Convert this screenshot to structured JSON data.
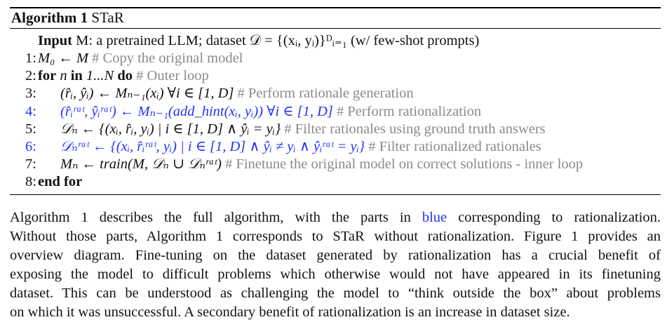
{
  "algorithm": {
    "label": "Algorithm 1",
    "name": "STaR",
    "input_keyword": "Input",
    "input_text": "M: a pretrained LLM; dataset 𝒟 = {(xᵢ, yᵢ)}ᴰᵢ₌₁ (w/ few-shot prompts)",
    "lines": [
      {
        "number": "1:",
        "code": "M₀ ← M",
        "comment": "# Copy the original model",
        "highlight": false
      },
      {
        "number": "2:",
        "keyword_for": "for",
        "code_mid": "n",
        "keyword_in": "in",
        "code_range": "1...N",
        "keyword_do": "do",
        "comment": "# Outer loop",
        "highlight": false
      },
      {
        "number": "3:",
        "code": "(r̂ᵢ, ŷᵢ) ← Mₙ₋₁(xᵢ)   ∀i ∈ [1, D]",
        "comment": "# Perform rationale generation",
        "highlight": false
      },
      {
        "number": "4:",
        "code": "(r̂ᵢʳᵃᵗ, ŷᵢʳᵃᵗ) ← Mₙ₋₁(add_hint(xᵢ, yᵢ))   ∀i ∈ [1, D]",
        "comment": "# Perform rationalization",
        "highlight": true
      },
      {
        "number": "5:",
        "code": "𝒟ₙ ← {(xᵢ, r̂ᵢ, yᵢ) | i ∈ [1, D] ∧ ŷᵢ = yᵢ}",
        "comment": "# Filter rationales using ground truth answers",
        "highlight": false
      },
      {
        "number": "6:",
        "code": "𝒟ₙʳᵃᵗ ← {(xᵢ, r̂ᵢʳᵃᵗ, yᵢ) | i ∈ [1, D] ∧ ŷᵢ ≠ yᵢ ∧ ŷᵢʳᵃᵗ = yᵢ}",
        "comment": "# Filter rationalized rationales",
        "highlight": true
      },
      {
        "number": "7:",
        "code": "Mₙ ← train(M, 𝒟ₙ ∪ 𝒟ₙʳᵃᵗ)",
        "comment": "# Finetune the original model on correct solutions - inner loop",
        "highlight": false
      },
      {
        "number": "8:",
        "keyword_end": "end for"
      }
    ]
  },
  "paragraph": {
    "rows": [
      "Algorithm 1 describes the full algorithm, with the parts in",
      "blue",
      "corresponding to rationalization.",
      "Without those parts, Algorithm 1 corresponds to STaR without rationalization. Figure 1 provides an",
      "overview diagram. Fine-tuning on the dataset generated by rationalization has a crucial benefit of",
      "exposing the model to difficult problems which otherwise would not have appeared in its finetuning",
      "dataset. This can be understood as challenging the model to “think outside the box” about problems",
      "on which it was unsuccessful. A secondary benefit of rationalization is an increase in dataset size."
    ]
  },
  "colors": {
    "highlight": "#2233ff",
    "comment": "#8a8a8a",
    "text": "#111111"
  }
}
